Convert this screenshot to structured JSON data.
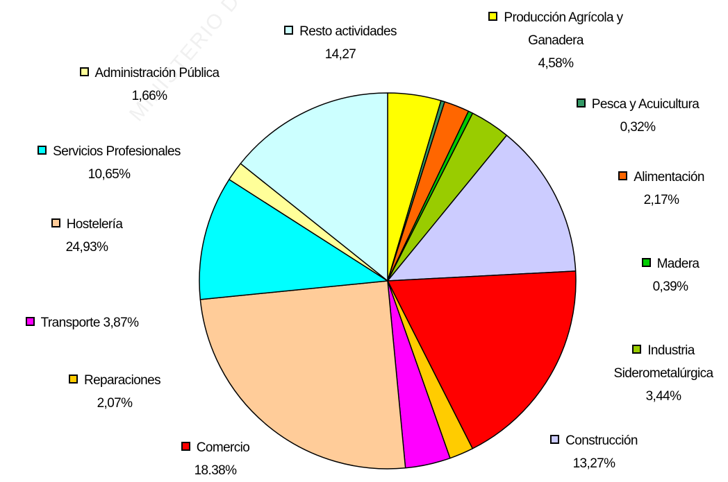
{
  "chart_data": {
    "type": "pie",
    "watermark": "MINISTERIO DE TRABAJO",
    "categories": [
      "Producción Agrícola y Ganadera",
      "Pesca y Acuicultura",
      "Alimentación",
      "Madera",
      "Industria Siderometalúrgica",
      "Construcción",
      "Comercio",
      "Reparaciones",
      "Transporte",
      "Hostelería",
      "Servicios Profesionales",
      "Administración Pública",
      "Resto actividades"
    ],
    "values": [
      4.58,
      0.32,
      2.17,
      0.39,
      3.44,
      13.27,
      18.38,
      2.07,
      3.87,
      24.93,
      10.65,
      1.66,
      14.27
    ],
    "value_labels": [
      "4,58%",
      "0,32%",
      "2,17%",
      "0,39%",
      "3,44%",
      "13,27%",
      "18.38%",
      "2,07%",
      "3,87%",
      "24,93%",
      "10,65%",
      "1,66%",
      "14,27"
    ],
    "colors": [
      "#ffff00",
      "#339966",
      "#ff6600",
      "#00cc00",
      "#99cc00",
      "#ccccff",
      "#ff0000",
      "#ffcc00",
      "#ff00ff",
      "#ffcc99",
      "#00ffff",
      "#ffff99",
      "#ccffff"
    ]
  }
}
